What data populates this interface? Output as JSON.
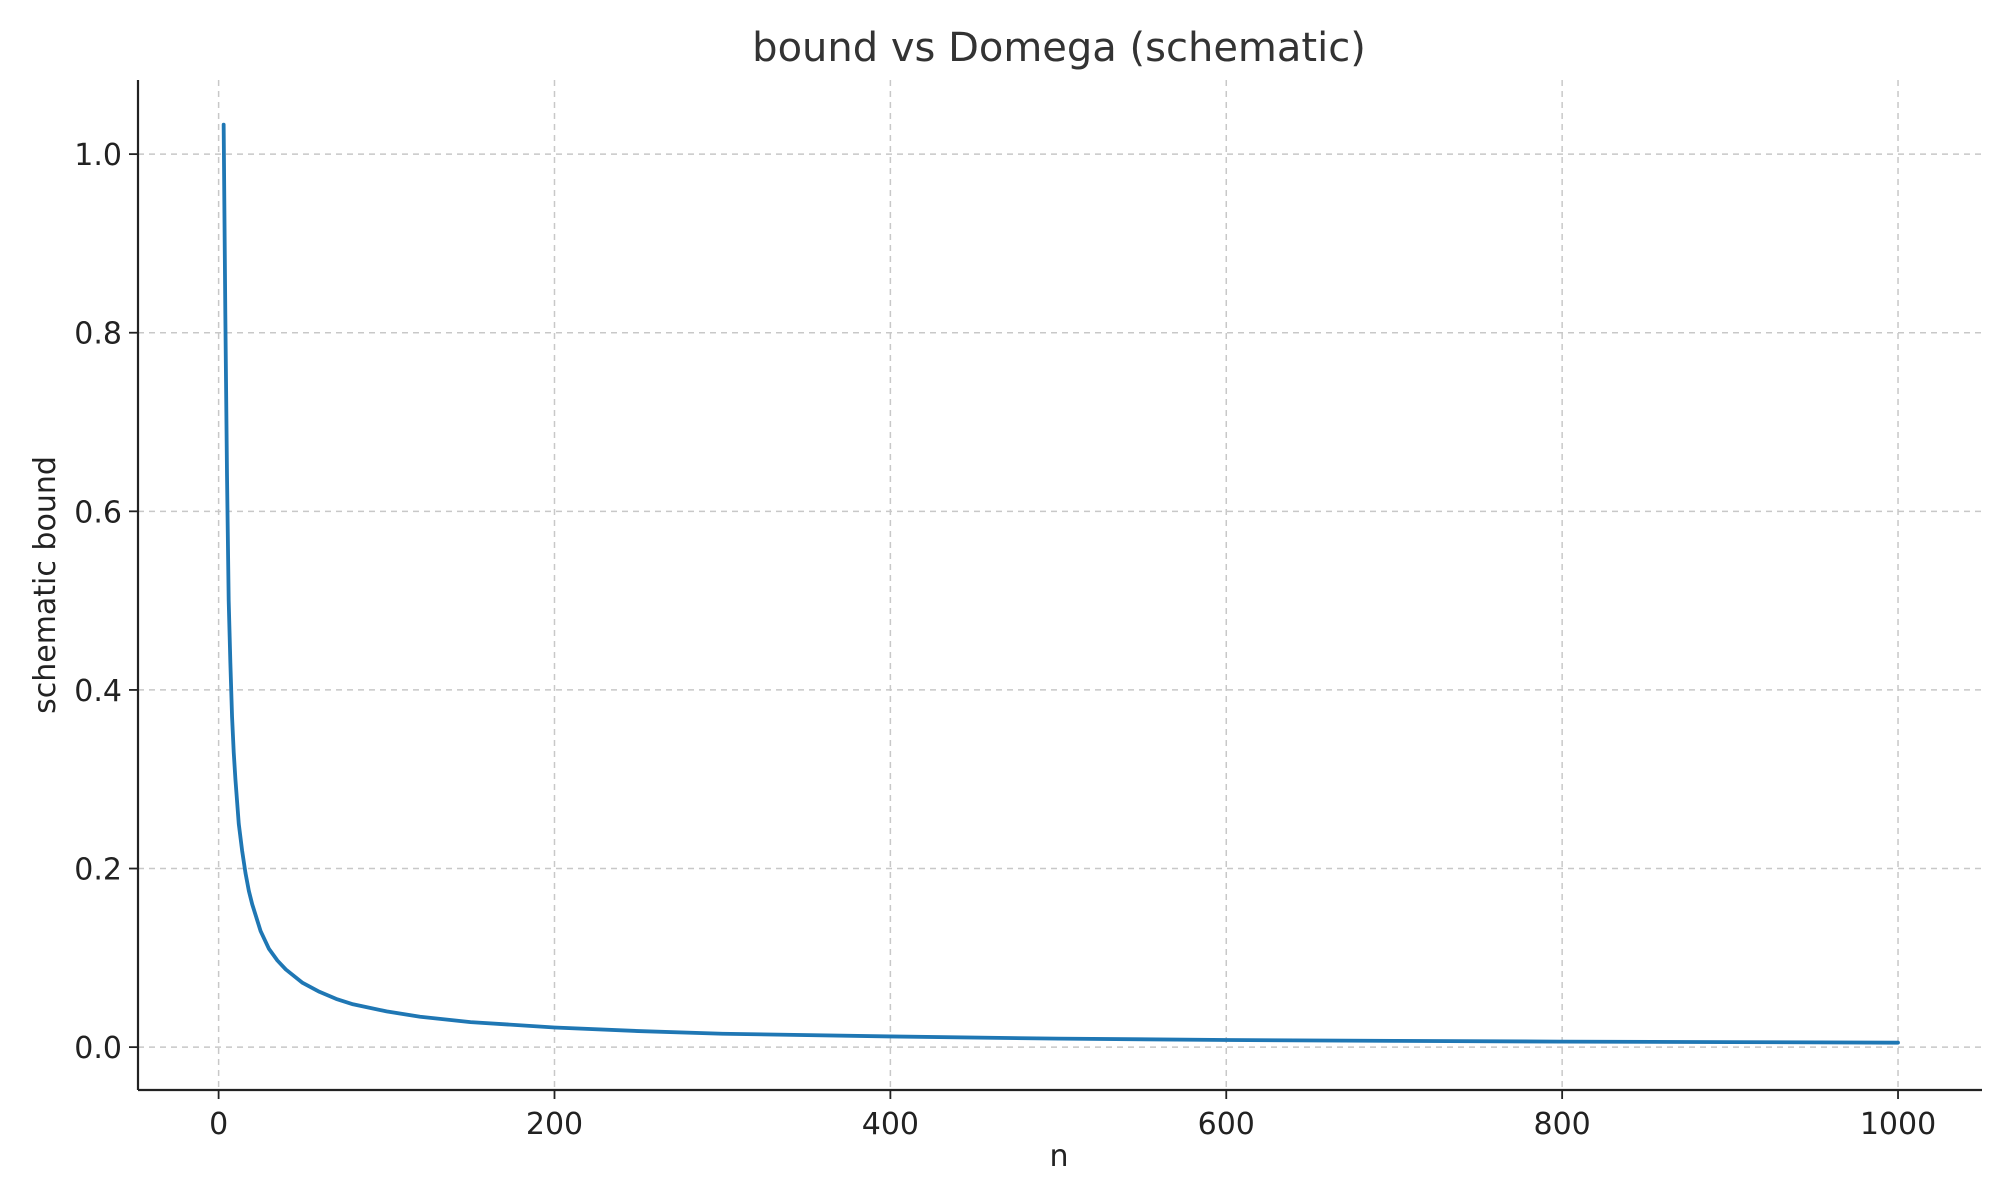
{
  "chart_data": {
    "type": "line",
    "title": "bound vs Domega (schematic)",
    "xlabel": "n",
    "ylabel": "schematic bound",
    "xlim": [
      -48,
      1050
    ],
    "ylim": [
      -0.048,
      1.083
    ],
    "xticks": [
      0,
      200,
      400,
      600,
      800,
      1000
    ],
    "xtick_labels": [
      "0",
      "200",
      "400",
      "600",
      "800",
      "1000"
    ],
    "yticks": [
      0.0,
      0.2,
      0.4,
      0.6,
      0.8,
      1.0
    ],
    "ytick_labels": [
      "0.0",
      "0.2",
      "0.4",
      "0.6",
      "0.8",
      "1.0"
    ],
    "grid": true,
    "series": [
      {
        "color": "#1f77b4",
        "x": [
          3,
          4,
          5,
          6,
          7,
          8,
          9,
          10,
          12,
          14,
          16,
          18,
          20,
          25,
          30,
          35,
          40,
          50,
          60,
          70,
          80,
          100,
          120,
          150,
          200,
          250,
          300,
          400,
          500,
          600,
          700,
          800,
          900,
          1000
        ],
        "y": [
          1.033,
          0.82,
          0.64,
          0.5,
          0.43,
          0.37,
          0.33,
          0.3,
          0.25,
          0.22,
          0.195,
          0.175,
          0.16,
          0.13,
          0.11,
          0.097,
          0.087,
          0.072,
          0.062,
          0.054,
          0.048,
          0.04,
          0.034,
          0.028,
          0.022,
          0.018,
          0.015,
          0.012,
          0.0095,
          0.008,
          0.007,
          0.0062,
          0.0056,
          0.005
        ]
      }
    ]
  }
}
